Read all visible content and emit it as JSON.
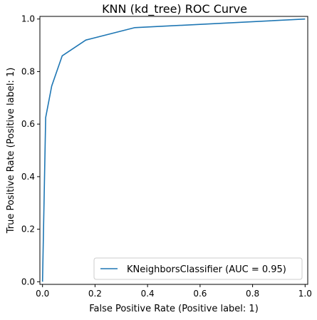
{
  "chart_data": {
    "type": "line",
    "title": "KNN (kd_tree) ROC Curve",
    "xlabel": "False Positive Rate (Positive label: 1)",
    "ylabel": "True Positive Rate (Positive label: 1)",
    "xlim": [
      -0.01,
      1.01
    ],
    "ylim": [
      -0.01,
      1.01
    ],
    "x_ticks": [
      0.0,
      0.2,
      0.4,
      0.6,
      0.8,
      1.0
    ],
    "x_tick_labels": [
      "0.0",
      "0.2",
      "0.4",
      "0.6",
      "0.8",
      "1.0"
    ],
    "y_ticks": [
      0.0,
      0.2,
      0.4,
      0.6,
      0.8,
      1.0
    ],
    "y_tick_labels": [
      "0.0",
      "0.2",
      "0.4",
      "0.6",
      "0.8",
      "1.0"
    ],
    "grid": false,
    "legend_position": "lower-right",
    "series": [
      {
        "name": "KNeighborsClassifier (AUC = 0.95)",
        "color": "#1f77b4",
        "x": [
          0.0,
          0.0,
          0.012,
          0.035,
          0.075,
          0.165,
          0.35,
          1.0
        ],
        "y": [
          0.0,
          0.0,
          0.625,
          0.745,
          0.86,
          0.92,
          0.967,
          1.0
        ]
      }
    ]
  }
}
